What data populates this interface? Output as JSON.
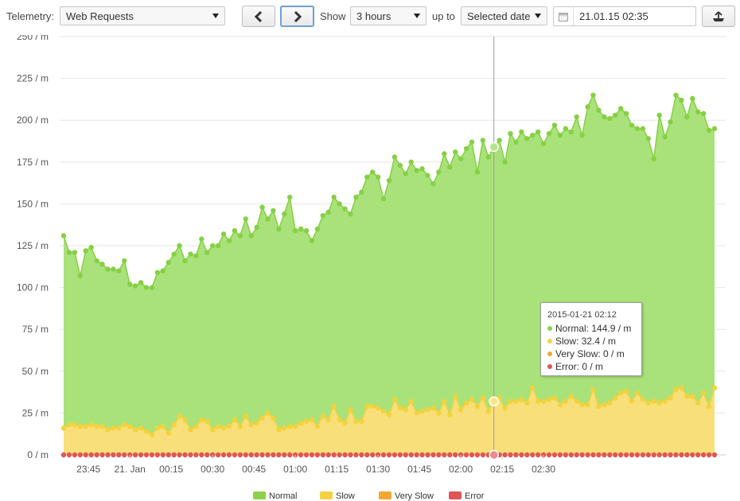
{
  "toolbar": {
    "telemetry_label": "Telemetry:",
    "telemetry_value": "Web Requests",
    "show_label": "Show",
    "show_value": "3 hours",
    "upto_label": "up to",
    "upto_value": "Selected date",
    "date_value": "21.01.15 02:35"
  },
  "tooltip": {
    "title": "2015-01-21 02:12",
    "rows": [
      {
        "label": "Normal:",
        "value": "144.9 / m",
        "color": "#8dd14a"
      },
      {
        "label": "Slow:",
        "value": "32.4 / m",
        "color": "#f5d142"
      },
      {
        "label": "Very Slow:",
        "value": "0 / m",
        "color": "#f0a830"
      },
      {
        "label": "Error:",
        "value": "0 / m",
        "color": "#e05555"
      }
    ]
  },
  "colors": {
    "normal_fill": "#a9e27a",
    "normal_line": "#86d044",
    "slow_fill": "#f8df7a",
    "slow_line": "#f3d23c",
    "very_slow": "#f0a830",
    "error": "#e05555",
    "grid": "#e6e6e6"
  },
  "chart_data": {
    "type": "area",
    "stacked": true,
    "x_start": "2015-01-20 23:36",
    "x_step_minutes": 2,
    "x_end": "2015-01-21 02:34",
    "ylim": [
      0,
      250
    ],
    "yticks": [
      0,
      25,
      50,
      75,
      100,
      125,
      150,
      175,
      200,
      225,
      250
    ],
    "ytick_labels": [
      "0 / m",
      "25 / m",
      "50 / m",
      "75 / m",
      "100 / m",
      "125 / m",
      "150 / m",
      "175 / m",
      "200 / m",
      "225 / m",
      "250 / m"
    ],
    "xtick_labels": [
      "23:45",
      "21. Jan",
      "00:15",
      "00:30",
      "00:45",
      "01:00",
      "01:15",
      "01:30",
      "01:45",
      "02:00",
      "02:15",
      "02:30"
    ],
    "xtick_minutes": [
      9,
      24,
      39,
      54,
      69,
      84,
      99,
      114,
      129,
      144,
      159,
      174
    ],
    "crosshair_minute": 156,
    "grid": true,
    "legend_position": "bottom",
    "series": [
      {
        "name": "Normal",
        "values": [
          115,
          103,
          103,
          90,
          105,
          106,
          99,
          97,
          96,
          95,
          94,
          98,
          85,
          86,
          87,
          86,
          88,
          93,
          93,
          102,
          102,
          102,
          95,
          105,
          102,
          108,
          101,
          110,
          108,
          116,
          111,
          113,
          114,
          118,
          113,
          117,
          126,
          116,
          124,
          120,
          128,
          137,
          117,
          116,
          114,
          107,
          118,
          120,
          124,
          125,
          129,
          128,
          117,
          134,
          137,
          137,
          140,
          138,
          127,
          140,
          145,
          145,
          141,
          143,
          145,
          145,
          140,
          134,
          144,
          148,
          148,
          146,
          150,
          152,
          154,
          140,
          154,
          152,
          152,
          154,
          147,
          160,
          155,
          160,
          158,
          151,
          161,
          154,
          159,
          163,
          161,
          163,
          158,
          170,
          161,
          178,
          176,
          177,
          172,
          170,
          169,
          170,
          166,
          165,
          158,
          162,
          158,
          145,
          172,
          158,
          165,
          176,
          172,
          167,
          178,
          174,
          167,
          165,
          155
        ]
      },
      {
        "name": "Slow",
        "values": [
          16,
          17,
          18,
          17,
          17,
          18,
          17,
          16,
          15,
          16,
          16,
          18,
          17,
          15,
          16,
          14,
          12,
          16,
          17,
          13,
          18,
          23,
          21,
          15,
          17,
          21,
          20,
          14,
          17,
          16,
          17,
          21,
          17,
          23,
          18,
          19,
          22,
          25,
          22,
          15,
          16,
          17,
          17,
          19,
          20,
          21,
          17,
          23,
          21,
          29,
          21,
          19,
          27,
          20,
          20,
          29,
          29,
          28,
          26,
          24,
          33,
          28,
          27,
          32,
          25,
          26,
          27,
          27,
          25,
          32,
          24,
          35,
          27,
          31,
          33,
          29,
          34,
          26,
          32,
          34,
          28,
          32,
          32,
          33,
          31,
          40,
          32,
          32,
          33,
          34,
          30,
          32,
          35,
          32,
          30,
          30,
          39,
          29,
          30,
          31,
          34,
          37,
          38,
          32,
          37,
          33,
          31,
          32,
          31,
          32,
          34,
          39,
          40,
          35,
          35,
          31,
          37,
          29,
          40
        ]
      },
      {
        "name": "Very Slow",
        "values": [
          0,
          1,
          0,
          0,
          0,
          0,
          0,
          1,
          0,
          0,
          0,
          0,
          0,
          0,
          0,
          0,
          0,
          0,
          0,
          0,
          0,
          0,
          0,
          0,
          0,
          0,
          0,
          1,
          0,
          0,
          0,
          0,
          0,
          0,
          0,
          0,
          0,
          0,
          0,
          0,
          0,
          0,
          0,
          0,
          0,
          0,
          0,
          0,
          0,
          0,
          0,
          0,
          0,
          0,
          0,
          0,
          0,
          0,
          0,
          0,
          0,
          0,
          0,
          0,
          0,
          0,
          0,
          1,
          0,
          0,
          0,
          0,
          0,
          0,
          0,
          0,
          0,
          0,
          0,
          0,
          0,
          0,
          0,
          0,
          0,
          0,
          0,
          0,
          0,
          0,
          0,
          0,
          0,
          0,
          0,
          0,
          0,
          0,
          0,
          0,
          0,
          0,
          0,
          0,
          0,
          0,
          0,
          0,
          0,
          0,
          0,
          0,
          0,
          0,
          0,
          0,
          0,
          0,
          0
        ]
      },
      {
        "name": "Error",
        "values": [
          0,
          0,
          0,
          0,
          0,
          0,
          0,
          0,
          0,
          0,
          0,
          0,
          0,
          0,
          0,
          0,
          0,
          0,
          0,
          0,
          0,
          0,
          0,
          0,
          0,
          0,
          0,
          0,
          0,
          0,
          0,
          0,
          0,
          0,
          0,
          0,
          0,
          0,
          0,
          0,
          0,
          0,
          0,
          0,
          0,
          0,
          0,
          0,
          0,
          0,
          0,
          0,
          0,
          0,
          0,
          0,
          0,
          0,
          0,
          0,
          0,
          0,
          0,
          0,
          0,
          0,
          0,
          0,
          0,
          0,
          0,
          0,
          0,
          0,
          0,
          0,
          0,
          0,
          0,
          0,
          0,
          0,
          0,
          0,
          0,
          0,
          0,
          0,
          0,
          0,
          0,
          0,
          0,
          0,
          0,
          0,
          0,
          0,
          0,
          0,
          0,
          0,
          0,
          0,
          0,
          0,
          0,
          0,
          0,
          0,
          0,
          0,
          0,
          0,
          0,
          0,
          0,
          0,
          0
        ]
      }
    ]
  }
}
